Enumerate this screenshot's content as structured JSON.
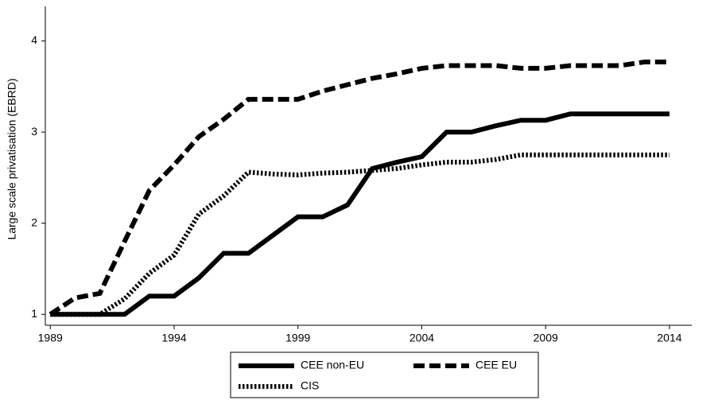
{
  "chart_data": {
    "type": "line",
    "y_label": "Large scale privatisation (EBRD)",
    "x": [
      1989,
      1990,
      1991,
      1992,
      1993,
      1994,
      1995,
      1996,
      1997,
      1998,
      1999,
      2000,
      2001,
      2002,
      2003,
      2004,
      2005,
      2006,
      2007,
      2008,
      2009,
      2010,
      2011,
      2012,
      2013,
      2014
    ],
    "series": [
      {
        "name": "CEE non-EU",
        "color": "#000000",
        "dash": "solid",
        "values": [
          1,
          1,
          1,
          1,
          1.2,
          1.2,
          1.4,
          1.67,
          1.67,
          1.87,
          2.07,
          2.07,
          2.2,
          2.6,
          2.67,
          2.73,
          3.0,
          3.0,
          3.07,
          3.13,
          3.13,
          3.2,
          3.2,
          3.2,
          3.2,
          3.2
        ]
      },
      {
        "name": "CEE EU",
        "color": "#000000",
        "dash": "dash",
        "values": [
          1,
          1.18,
          1.23,
          1.8,
          2.36,
          2.64,
          2.95,
          3.14,
          3.36,
          3.36,
          3.36,
          3.45,
          3.52,
          3.59,
          3.64,
          3.7,
          3.73,
          3.73,
          3.73,
          3.7,
          3.7,
          3.73,
          3.73,
          3.73,
          3.77,
          3.77
        ]
      },
      {
        "name": "CIS",
        "color": "#000000",
        "dash": "dot",
        "values": [
          1,
          1,
          1,
          1.17,
          1.45,
          1.65,
          2.1,
          2.3,
          2.56,
          2.54,
          2.53,
          2.55,
          2.56,
          2.58,
          2.6,
          2.64,
          2.67,
          2.67,
          2.7,
          2.75,
          2.75,
          2.75,
          2.75,
          2.75,
          2.75,
          2.75
        ]
      }
    ],
    "xlim": [
      1988.8,
      2014.9
    ],
    "xticks": [
      1989,
      1994,
      1999,
      2004,
      2009,
      2014
    ],
    "ylim": [
      0.88,
      4.38
    ],
    "yticks": [
      1,
      2,
      3,
      4
    ],
    "grid": false,
    "legend": "bottom"
  }
}
